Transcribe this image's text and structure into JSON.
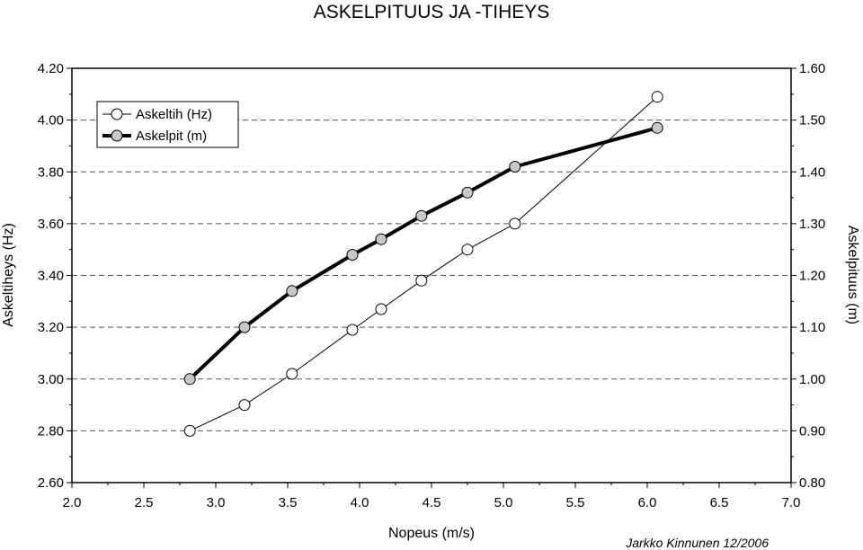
{
  "chart_data": {
    "type": "line",
    "title": "ASKELPITUUS JA -TIHEYS",
    "xlabel": "Nopeus (m/s)",
    "ylabel": "Askeltiheys (Hz)",
    "y2label": "Askelpituus (m)",
    "xlim": [
      2.0,
      7.0
    ],
    "ylim": [
      2.6,
      4.2
    ],
    "y2lim": [
      0.8,
      1.6
    ],
    "xticks": [
      "2.0",
      "2.5",
      "3.0",
      "3.5",
      "4.0",
      "4.5",
      "5.0",
      "5.5",
      "6.0",
      "6.5",
      "7.0"
    ],
    "yticks": [
      "2.60",
      "2.80",
      "3.00",
      "3.20",
      "3.40",
      "3.60",
      "3.80",
      "4.00",
      "4.20"
    ],
    "y2ticks": [
      "0.80",
      "0.90",
      "1.00",
      "1.10",
      "1.20",
      "1.30",
      "1.40",
      "1.50",
      "1.60"
    ],
    "grid": "horizontal dashed",
    "legend_position": "top-left",
    "series": [
      {
        "name": "Askeltih (Hz)",
        "axis": "left",
        "marker_fill": "#ffffff",
        "line_width": 1,
        "x": [
          2.82,
          3.2,
          3.53,
          3.95,
          4.15,
          4.43,
          4.75,
          5.08,
          6.07
        ],
        "y": [
          2.8,
          2.9,
          3.02,
          3.19,
          3.27,
          3.38,
          3.5,
          3.6,
          4.09
        ]
      },
      {
        "name": "Askelpit (m)",
        "axis": "right",
        "marker_fill": "#c8c8c8",
        "line_width": 4,
        "x": [
          2.82,
          3.2,
          3.53,
          3.95,
          4.15,
          4.43,
          4.75,
          5.08,
          6.07
        ],
        "y": [
          1.0,
          1.1,
          1.17,
          1.24,
          1.27,
          1.315,
          1.36,
          1.41,
          1.485
        ]
      }
    ],
    "annotation": "Jarkko Kinnunen 12/2006"
  }
}
